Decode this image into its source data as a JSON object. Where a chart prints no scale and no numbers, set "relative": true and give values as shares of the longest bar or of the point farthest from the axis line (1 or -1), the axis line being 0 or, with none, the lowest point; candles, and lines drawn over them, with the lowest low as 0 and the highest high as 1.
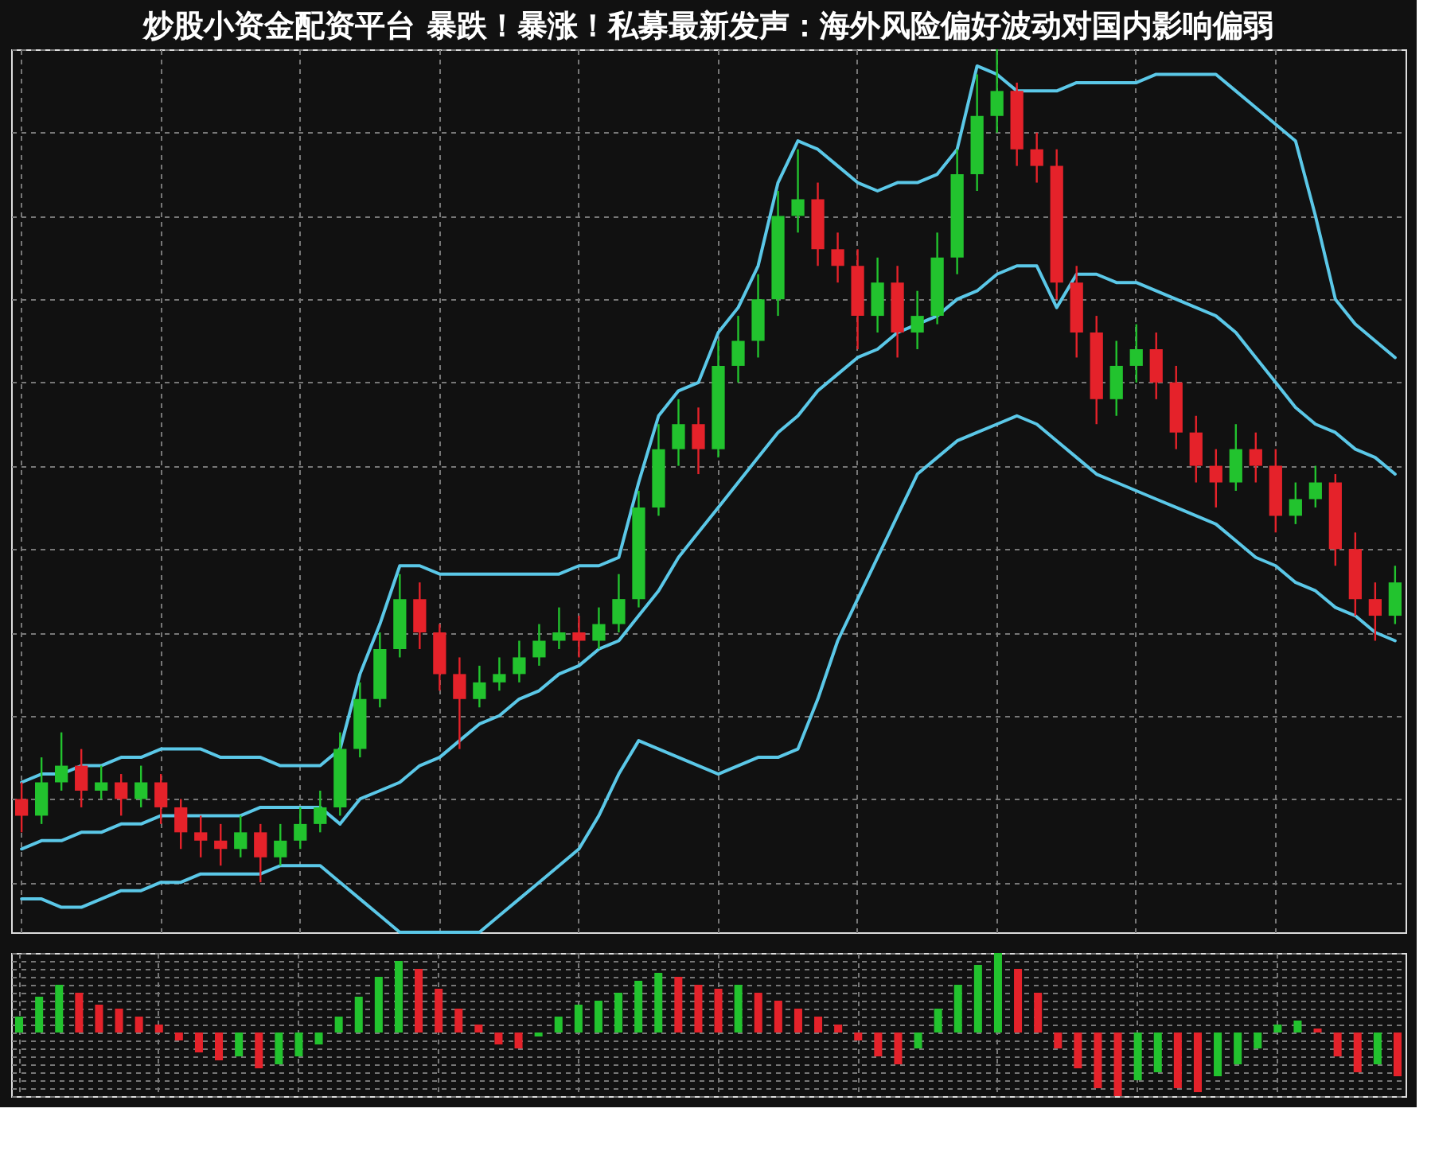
{
  "chart_data": [
    {
      "type": "candlestick",
      "title": "炒股小资金配资平台 暴跌！暴涨！私募最新发声：海外风险偏好波动对国内影响偏弱",
      "relative": true,
      "grid": true,
      "categories": [
        null,
        null,
        null,
        null,
        null,
        null,
        null,
        null,
        null,
        null,
        null,
        null,
        null,
        null,
        null,
        null,
        null,
        null,
        null,
        null,
        null,
        null,
        null,
        null,
        null,
        null,
        null,
        null,
        null,
        null,
        null,
        null,
        null,
        null,
        null,
        null,
        null,
        null,
        null,
        null,
        null,
        null,
        null,
        null,
        null,
        null,
        null,
        null,
        null,
        null,
        null,
        null,
        null,
        null,
        null,
        null,
        null,
        null,
        null,
        null,
        null,
        null,
        null,
        null,
        null,
        null,
        null,
        null,
        null,
        null
      ],
      "ohlc": [
        [
          0.1,
          0.12,
          0.06,
          0.08
        ],
        [
          0.08,
          0.15,
          0.07,
          0.12
        ],
        [
          0.12,
          0.18,
          0.11,
          0.14
        ],
        [
          0.14,
          0.16,
          0.09,
          0.11
        ],
        [
          0.11,
          0.14,
          0.1,
          0.12
        ],
        [
          0.12,
          0.13,
          0.08,
          0.1
        ],
        [
          0.1,
          0.14,
          0.09,
          0.12
        ],
        [
          0.12,
          0.13,
          0.07,
          0.09
        ],
        [
          0.09,
          0.1,
          0.04,
          0.06
        ],
        [
          0.06,
          0.08,
          0.03,
          0.05
        ],
        [
          0.05,
          0.07,
          0.02,
          0.04
        ],
        [
          0.04,
          0.08,
          0.03,
          0.06
        ],
        [
          0.06,
          0.07,
          0.0,
          0.03
        ],
        [
          0.03,
          0.07,
          0.02,
          0.05
        ],
        [
          0.05,
          0.09,
          0.04,
          0.07
        ],
        [
          0.07,
          0.11,
          0.06,
          0.09
        ],
        [
          0.09,
          0.18,
          0.08,
          0.16
        ],
        [
          0.16,
          0.24,
          0.15,
          0.22
        ],
        [
          0.22,
          0.3,
          0.21,
          0.28
        ],
        [
          0.28,
          0.37,
          0.27,
          0.34
        ],
        [
          0.34,
          0.36,
          0.28,
          0.3
        ],
        [
          0.3,
          0.31,
          0.23,
          0.25
        ],
        [
          0.25,
          0.27,
          0.16,
          0.22
        ],
        [
          0.22,
          0.26,
          0.21,
          0.24
        ],
        [
          0.24,
          0.27,
          0.23,
          0.25
        ],
        [
          0.25,
          0.29,
          0.24,
          0.27
        ],
        [
          0.27,
          0.31,
          0.26,
          0.29
        ],
        [
          0.29,
          0.33,
          0.28,
          0.3
        ],
        [
          0.3,
          0.32,
          0.27,
          0.29
        ],
        [
          0.29,
          0.33,
          0.28,
          0.31
        ],
        [
          0.31,
          0.37,
          0.3,
          0.34
        ],
        [
          0.34,
          0.47,
          0.33,
          0.45
        ],
        [
          0.45,
          0.55,
          0.44,
          0.52
        ],
        [
          0.52,
          0.58,
          0.5,
          0.55
        ],
        [
          0.55,
          0.57,
          0.49,
          0.52
        ],
        [
          0.52,
          0.65,
          0.51,
          0.62
        ],
        [
          0.62,
          0.68,
          0.6,
          0.65
        ],
        [
          0.65,
          0.73,
          0.63,
          0.7
        ],
        [
          0.7,
          0.83,
          0.68,
          0.8
        ],
        [
          0.8,
          0.88,
          0.78,
          0.82
        ],
        [
          0.82,
          0.84,
          0.74,
          0.76
        ],
        [
          0.76,
          0.78,
          0.72,
          0.74
        ],
        [
          0.74,
          0.76,
          0.64,
          0.68
        ],
        [
          0.68,
          0.75,
          0.66,
          0.72
        ],
        [
          0.72,
          0.74,
          0.63,
          0.66
        ],
        [
          0.66,
          0.71,
          0.64,
          0.68
        ],
        [
          0.68,
          0.78,
          0.67,
          0.75
        ],
        [
          0.75,
          0.88,
          0.73,
          0.85
        ],
        [
          0.85,
          0.97,
          0.83,
          0.92
        ],
        [
          0.92,
          1.0,
          0.9,
          0.95
        ],
        [
          0.95,
          0.96,
          0.86,
          0.88
        ],
        [
          0.88,
          0.9,
          0.84,
          0.86
        ],
        [
          0.86,
          0.88,
          0.7,
          0.72
        ],
        [
          0.72,
          0.74,
          0.63,
          0.66
        ],
        [
          0.66,
          0.68,
          0.55,
          0.58
        ],
        [
          0.58,
          0.65,
          0.56,
          0.62
        ],
        [
          0.62,
          0.67,
          0.6,
          0.64
        ],
        [
          0.64,
          0.66,
          0.58,
          0.6
        ],
        [
          0.6,
          0.62,
          0.52,
          0.54
        ],
        [
          0.54,
          0.56,
          0.48,
          0.5
        ],
        [
          0.5,
          0.52,
          0.45,
          0.48
        ],
        [
          0.48,
          0.55,
          0.47,
          0.52
        ],
        [
          0.52,
          0.54,
          0.48,
          0.5
        ],
        [
          0.5,
          0.52,
          0.42,
          0.44
        ],
        [
          0.44,
          0.48,
          0.43,
          0.46
        ],
        [
          0.46,
          0.5,
          0.45,
          0.48
        ],
        [
          0.48,
          0.49,
          0.38,
          0.4
        ],
        [
          0.4,
          0.42,
          0.32,
          0.34
        ],
        [
          0.34,
          0.36,
          0.29,
          0.32
        ],
        [
          0.32,
          0.38,
          0.31,
          0.36
        ]
      ],
      "colors": [
        "#e5222a",
        "#22c32e",
        "#22c32e",
        "#e5222a",
        "#22c32e",
        "#e5222a",
        "#22c32e",
        "#e5222a",
        "#e5222a",
        "#e5222a",
        "#e5222a",
        "#22c32e",
        "#e5222a",
        "#22c32e",
        "#22c32e",
        "#22c32e",
        "#22c32e",
        "#22c32e",
        "#22c32e",
        "#22c32e",
        "#e5222a",
        "#e5222a",
        "#e5222a",
        "#22c32e",
        "#22c32e",
        "#22c32e",
        "#22c32e",
        "#22c32e",
        "#e5222a",
        "#22c32e",
        "#22c32e",
        "#22c32e",
        "#22c32e",
        "#22c32e",
        "#e5222a",
        "#22c32e",
        "#22c32e",
        "#22c32e",
        "#22c32e",
        "#22c32e",
        "#e5222a",
        "#e5222a",
        "#e5222a",
        "#22c32e",
        "#e5222a",
        "#22c32e",
        "#22c32e",
        "#22c32e",
        "#22c32e",
        "#22c32e",
        "#e5222a",
        "#e5222a",
        "#e5222a",
        "#e5222a",
        "#e5222a",
        "#22c32e",
        "#22c32e",
        "#e5222a",
        "#e5222a",
        "#e5222a",
        "#e5222a",
        "#22c32e",
        "#e5222a",
        "#e5222a",
        "#22c32e",
        "#22c32e",
        "#e5222a",
        "#e5222a",
        "#e5222a",
        "#22c32e"
      ],
      "series": [
        {
          "type": "line",
          "color": "#5bc8e8",
          "values": [
            0.12,
            0.13,
            0.13,
            0.14,
            0.14,
            0.15,
            0.15,
            0.16,
            0.16,
            0.16,
            0.15,
            0.15,
            0.15,
            0.14,
            0.14,
            0.14,
            0.16,
            0.25,
            0.31,
            0.38,
            0.38,
            0.37,
            0.37,
            0.37,
            0.37,
            0.37,
            0.37,
            0.37,
            0.38,
            0.38,
            0.39,
            0.48,
            0.56,
            0.59,
            0.6,
            0.66,
            0.69,
            0.74,
            0.84,
            0.89,
            0.88,
            0.86,
            0.84,
            0.83,
            0.84,
            0.84,
            0.85,
            0.88,
            0.98,
            0.97,
            0.95,
            0.95,
            0.95,
            0.96,
            0.96,
            0.96,
            0.96,
            0.97,
            0.97,
            0.97,
            0.97,
            0.95,
            0.93,
            0.91,
            0.89,
            0.8,
            0.7,
            0.67,
            0.65,
            0.63
          ]
        },
        {
          "type": "line",
          "color": "#5bc8e8",
          "values": [
            0.04,
            0.05,
            0.05,
            0.06,
            0.06,
            0.07,
            0.07,
            0.08,
            0.08,
            0.08,
            0.08,
            0.08,
            0.09,
            0.09,
            0.09,
            0.09,
            0.07,
            0.1,
            0.11,
            0.12,
            0.14,
            0.15,
            0.17,
            0.19,
            0.2,
            0.22,
            0.23,
            0.25,
            0.26,
            0.28,
            0.29,
            0.32,
            0.35,
            0.39,
            0.42,
            0.45,
            0.48,
            0.51,
            0.54,
            0.56,
            0.59,
            0.61,
            0.63,
            0.64,
            0.66,
            0.67,
            0.68,
            0.7,
            0.71,
            0.73,
            0.74,
            0.74,
            0.69,
            0.73,
            0.73,
            0.72,
            0.72,
            0.71,
            0.7,
            0.69,
            0.68,
            0.66,
            0.63,
            0.6,
            0.57,
            0.55,
            0.54,
            0.52,
            0.51,
            0.49
          ]
        },
        {
          "type": "line",
          "color": "#5bc8e8",
          "values": [
            -0.02,
            -0.02,
            -0.03,
            -0.03,
            -0.02,
            -0.01,
            -0.01,
            0.0,
            0.0,
            0.01,
            0.01,
            0.01,
            0.01,
            0.02,
            0.02,
            0.02,
            0.0,
            -0.02,
            -0.04,
            -0.06,
            -0.06,
            -0.06,
            -0.06,
            -0.06,
            -0.04,
            -0.02,
            0.0,
            0.02,
            0.04,
            0.08,
            0.13,
            0.17,
            0.16,
            0.15,
            0.14,
            0.13,
            0.14,
            0.15,
            0.15,
            0.16,
            0.22,
            0.29,
            0.34,
            0.39,
            0.44,
            0.49,
            0.51,
            0.53,
            0.54,
            0.55,
            0.56,
            0.55,
            0.53,
            0.51,
            0.49,
            0.48,
            0.47,
            0.46,
            0.45,
            0.44,
            0.43,
            0.41,
            0.39,
            0.38,
            0.36,
            0.35,
            0.33,
            0.32,
            0.3,
            0.29
          ]
        }
      ]
    },
    {
      "type": "bar",
      "relative": true,
      "grid": true,
      "categories": [
        null,
        null,
        null,
        null,
        null,
        null,
        null,
        null,
        null,
        null,
        null,
        null,
        null,
        null,
        null,
        null,
        null,
        null,
        null,
        null,
        null,
        null,
        null,
        null,
        null,
        null,
        null,
        null,
        null,
        null,
        null,
        null,
        null,
        null,
        null,
        null,
        null,
        null,
        null,
        null,
        null,
        null,
        null,
        null,
        null,
        null,
        null,
        null,
        null,
        null,
        null,
        null,
        null,
        null,
        null,
        null,
        null,
        null,
        null,
        null,
        null,
        null,
        null,
        null,
        null,
        null,
        null,
        null,
        null,
        null
      ],
      "values": [
        0.2,
        0.45,
        0.6,
        0.5,
        0.35,
        0.3,
        0.2,
        0.1,
        -0.1,
        -0.25,
        -0.35,
        -0.3,
        -0.45,
        -0.4,
        -0.3,
        -0.15,
        0.2,
        0.45,
        0.7,
        0.9,
        0.8,
        0.55,
        0.3,
        0.1,
        -0.15,
        -0.2,
        -0.05,
        0.2,
        0.35,
        0.4,
        0.5,
        0.65,
        0.75,
        0.7,
        0.6,
        0.55,
        0.6,
        0.5,
        0.4,
        0.3,
        0.2,
        0.1,
        -0.1,
        -0.3,
        -0.4,
        -0.2,
        0.3,
        0.6,
        0.85,
        1.0,
        0.8,
        0.5,
        -0.2,
        -0.45,
        -0.7,
        -0.8,
        -0.6,
        -0.5,
        -0.7,
        -0.75,
        -0.55,
        -0.4,
        -0.2,
        0.1,
        0.15,
        0.05,
        -0.3,
        -0.5,
        -0.4,
        -0.55
      ],
      "colors": [
        "#22c32e",
        "#22c32e",
        "#22c32e",
        "#e5222a",
        "#e5222a",
        "#e5222a",
        "#e5222a",
        "#e5222a",
        "#e5222a",
        "#e5222a",
        "#e5222a",
        "#22c32e",
        "#e5222a",
        "#22c32e",
        "#22c32e",
        "#22c32e",
        "#22c32e",
        "#22c32e",
        "#22c32e",
        "#22c32e",
        "#e5222a",
        "#e5222a",
        "#e5222a",
        "#e5222a",
        "#e5222a",
        "#e5222a",
        "#22c32e",
        "#22c32e",
        "#22c32e",
        "#22c32e",
        "#22c32e",
        "#22c32e",
        "#22c32e",
        "#e5222a",
        "#e5222a",
        "#e5222a",
        "#22c32e",
        "#e5222a",
        "#e5222a",
        "#e5222a",
        "#e5222a",
        "#e5222a",
        "#e5222a",
        "#e5222a",
        "#e5222a",
        "#22c32e",
        "#22c32e",
        "#22c32e",
        "#22c32e",
        "#22c32e",
        "#e5222a",
        "#e5222a",
        "#e5222a",
        "#e5222a",
        "#e5222a",
        "#e5222a",
        "#22c32e",
        "#22c32e",
        "#e5222a",
        "#e5222a",
        "#22c32e",
        "#22c32e",
        "#22c32e",
        "#22c32e",
        "#22c32e",
        "#e5222a",
        "#e5222a",
        "#e5222a",
        "#22c32e",
        "#e5222a"
      ]
    }
  ]
}
